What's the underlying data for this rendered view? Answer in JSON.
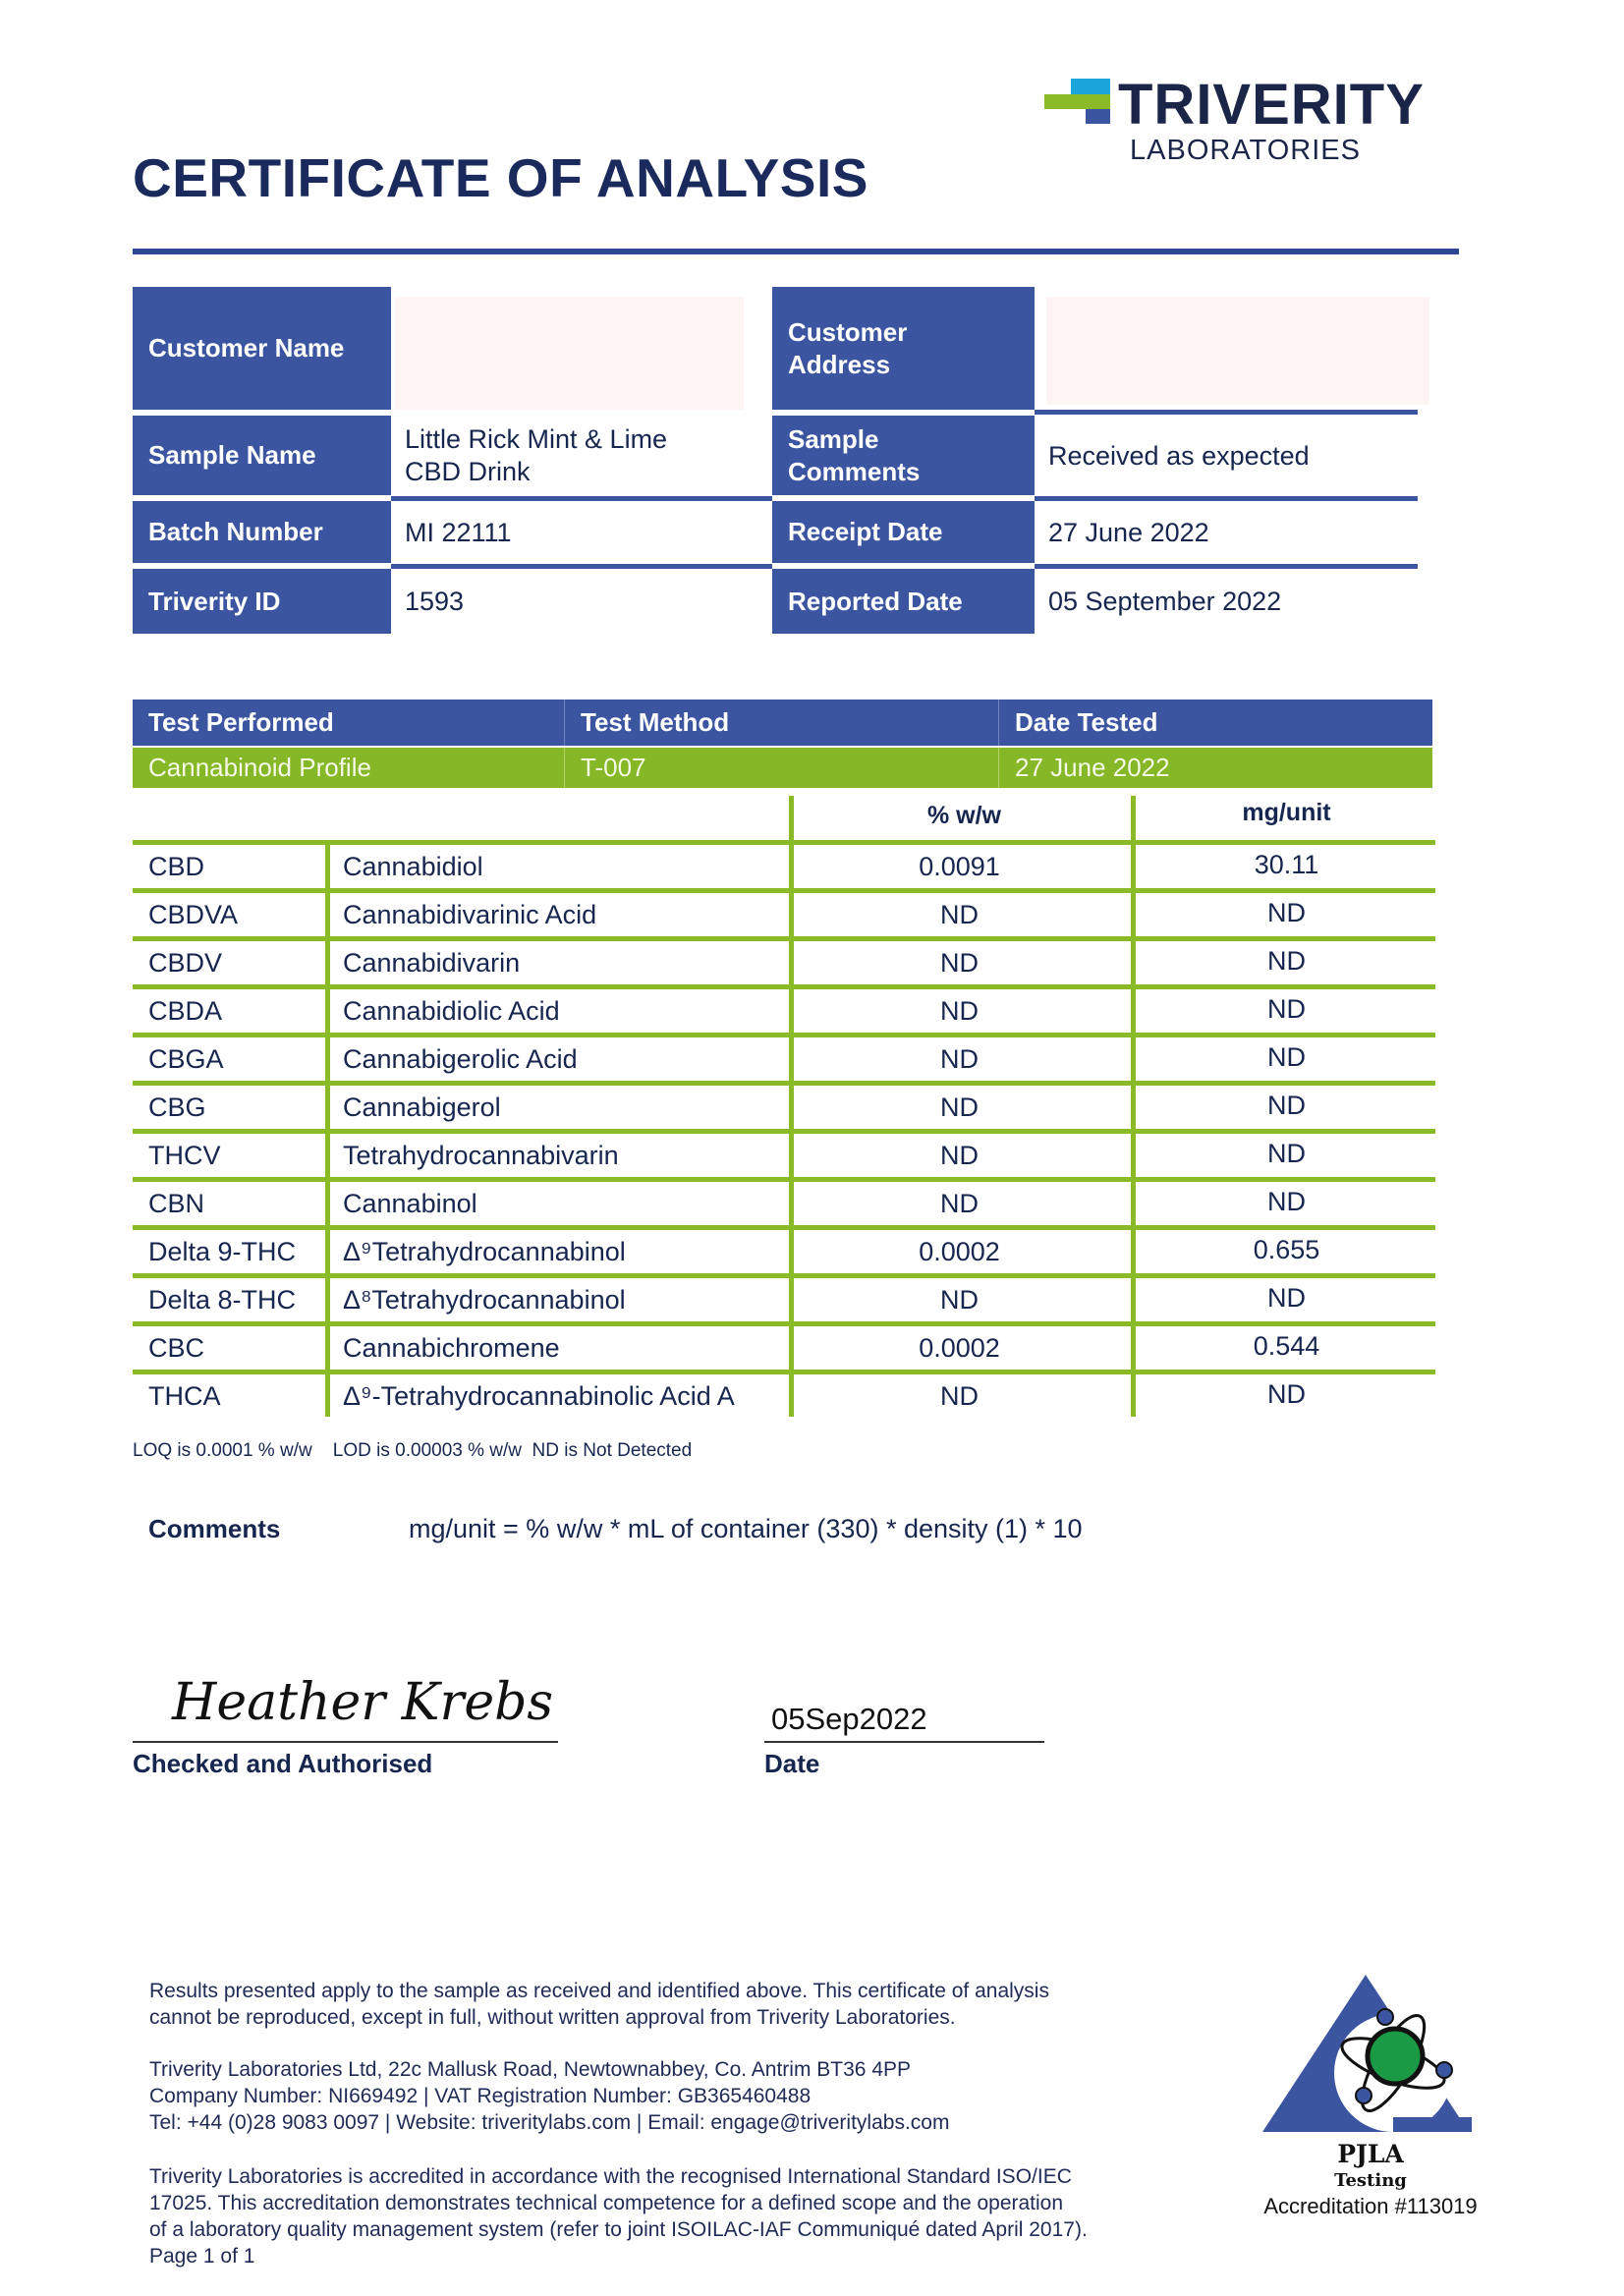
{
  "logo": {
    "name": "TRIVERITY",
    "sub": "LABORATORIES",
    "colors": {
      "cyan": "#1aa6dc",
      "green": "#8bba27",
      "blue": "#3c55a0",
      "navy": "#1b2548"
    }
  },
  "title": "CERTIFICATE OF ANALYSIS",
  "info": {
    "customer_name_label": "Customer Name",
    "customer_name": "",
    "customer_address_label": "Customer Address",
    "customer_address": "",
    "sample_name_label": "Sample Name",
    "sample_name": "Little Rick Mint & Lime CBD Drink",
    "sample_comments_label": "Sample Comments",
    "sample_comments": "Received as expected",
    "batch_number_label": "Batch Number",
    "batch_number": "MI 22111",
    "receipt_date_label": "Receipt Date",
    "receipt_date": "27 June 2022",
    "triverity_id_label": "Triverity ID",
    "triverity_id": "1593",
    "reported_date_label": "Reported Date",
    "reported_date": "05 September 2022"
  },
  "test": {
    "headers": [
      "Test Performed",
      "Test Method",
      "Date Tested"
    ],
    "values": [
      "Cannabinoid Profile",
      "T-007",
      "27 June 2022"
    ]
  },
  "results": {
    "headers": [
      "% w/w",
      "mg/unit"
    ],
    "rows": [
      [
        "CBD",
        "Cannabidiol",
        "0.0091",
        "30.11"
      ],
      [
        "CBDVA",
        "Cannabidivarinic Acid",
        "ND",
        "ND"
      ],
      [
        "CBDV",
        "Cannabidivarin",
        "ND",
        "ND"
      ],
      [
        "CBDA",
        "Cannabidiolic Acid",
        "ND",
        "ND"
      ],
      [
        "CBGA",
        "Cannabigerolic Acid",
        "ND",
        "ND"
      ],
      [
        "CBG",
        "Cannabigerol",
        "ND",
        "ND"
      ],
      [
        "THCV",
        "Tetrahydrocannabivarin",
        "ND",
        "ND"
      ],
      [
        "CBN",
        "Cannabinol",
        "ND",
        "ND"
      ],
      [
        "Delta 9-THC",
        "Δ⁹Tetrahydrocannabinol",
        "0.0002",
        "0.655"
      ],
      [
        "Delta 8-THC",
        "Δ⁸Tetrahydrocannabinol",
        "ND",
        "ND"
      ],
      [
        "CBC",
        "Cannabichromene",
        "0.0002",
        "0.544"
      ],
      [
        "THCA",
        "Δ⁹-Tetrahydrocannabinolic Acid A",
        "ND",
        "ND"
      ]
    ],
    "note": "LOQ is 0.0001 % w/w    LOD is 0.00003 % w/w  ND is Not Detected"
  },
  "comments": {
    "label": "Comments",
    "text": "mg/unit = % w/w * mL of container (330) * density (1) * 10"
  },
  "signature": {
    "name": "Heather Krebs",
    "label": "Checked and Authorised",
    "date": "05Sep2022",
    "date_label": "Date"
  },
  "footer": {
    "lines": [
      "Results presented apply to the sample as received and identified above. This certificate of analysis",
      "cannot be reproduced, except in full, without written approval from Triverity Laboratories.",
      "Triverity Laboratories Ltd, 22c Mallusk Road, Newtownabbey, Co. Antrim BT36 4PP",
      "Company Number: NI669492 | VAT Registration Number: GB365460488",
      "Tel: +44 (0)28 9083 0097 | Website: triveritylabs.com | Email: engage@triveritylabs.com",
      "Triverity Laboratories is accredited in accordance with the recognised International Standard ISO/IEC",
      "17025. This accreditation demonstrates technical competence for a defined scope and the operation",
      "of a laboratory quality management system (refer to joint ISOILAC-IAF Communiqué dated April 2017).",
      "Page 1 of 1"
    ]
  },
  "accreditation": {
    "name": "PJLA",
    "type": "Testing",
    "number": "Accreditation #113019"
  }
}
